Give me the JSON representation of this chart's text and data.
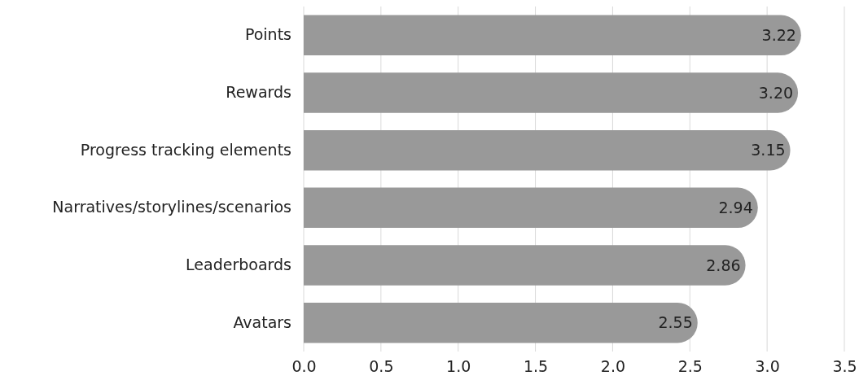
{
  "chart_data": {
    "type": "bar",
    "orientation": "horizontal",
    "categories": [
      "Points",
      "Rewards",
      "Progress tracking elements",
      "Narratives/storylines/scenarios",
      "Leaderboards",
      "Avatars"
    ],
    "values": [
      3.22,
      3.2,
      3.15,
      2.94,
      2.86,
      2.55
    ],
    "color": "#999999",
    "xlim": [
      0,
      3.5
    ],
    "xticks": [
      {
        "value": 0,
        "label": "0.0"
      },
      {
        "value": 0.5,
        "label": "0.5"
      },
      {
        "value": 1,
        "label": "1.0"
      },
      {
        "value": 1.5,
        "label": "1.5"
      },
      {
        "value": 2,
        "label": "2.0"
      },
      {
        "value": 2.5,
        "label": "2.5"
      },
      {
        "value": 3,
        "label": "3.0"
      },
      {
        "value": 3.5,
        "label": "3.5"
      }
    ],
    "grid": "x",
    "value_labels": [
      "3.22",
      "3.20",
      "3.15",
      "2.94",
      "2.86",
      "2.55"
    ]
  }
}
